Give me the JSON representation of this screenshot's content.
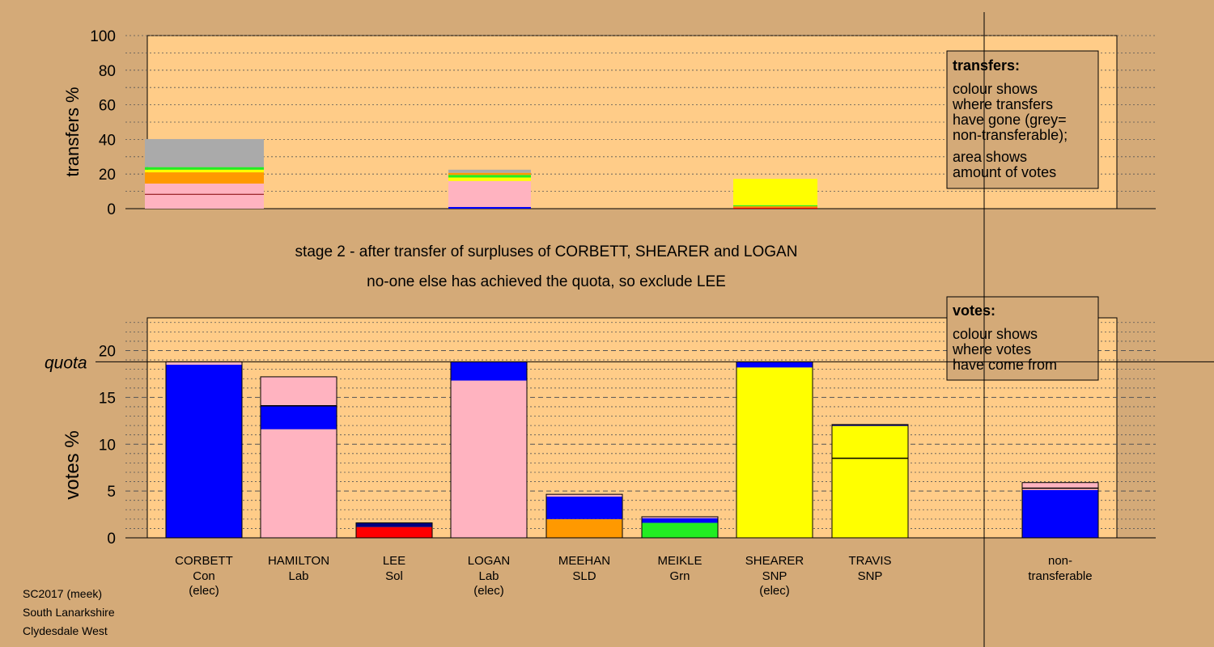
{
  "colors": {
    "background": "#d4aa78",
    "plot_bg": "#ffcc88",
    "Con": "#0000ff",
    "Lab": "#ffb3c0",
    "Sol": "#ff0000",
    "SLD": "#ff9900",
    "Grn": "#22ee22",
    "SNP": "#ffff00",
    "Con_dark": "#000080",
    "nontransferable": "#aaaaaa"
  },
  "top_legend": {
    "title": "transfers:",
    "lines1": [
      "colour shows",
      "where transfers",
      "have gone (grey=",
      "non-transferable);"
    ],
    "lines2": [
      "area shows",
      "amount of votes"
    ]
  },
  "bottom_legend": {
    "title": "votes:",
    "lines1": [
      "colour shows",
      "where votes",
      "have come from"
    ]
  },
  "stage_text": {
    "line1": "stage 2 - after transfer of surpluses of CORBETT, SHEARER and LOGAN",
    "line2": "no-one else has achieved the quota, so exclude LEE"
  },
  "footer": [
    "SC2017 (meek)",
    "South Lanarkshire",
    "Clydesdale West"
  ],
  "chart_data": [
    {
      "type": "bar",
      "title": "transfers",
      "ylabel": "transfers %",
      "ylim": [
        0,
        100
      ],
      "yticks": [
        0,
        20,
        40,
        60,
        80,
        100
      ],
      "bars": [
        {
          "source": "CORBETT",
          "segments": [
            {
              "party": "Lab",
              "value": 14.5
            },
            {
              "party": "SLD",
              "value": 6.5
            },
            {
              "party": "SNP",
              "value": 1.5
            },
            {
              "party": "Grn",
              "value": 1.5
            },
            {
              "party": "nontransferable",
              "value": 16.2
            }
          ],
          "marker": 8.3
        },
        {
          "source": "LOGAN",
          "segments": [
            {
              "party": "Con",
              "value": 1.0
            },
            {
              "party": "Lab",
              "value": 15.0
            },
            {
              "party": "SNP",
              "value": 2.0
            },
            {
              "party": "Grn",
              "value": 1.5
            },
            {
              "party": "SLD",
              "value": 1.2
            },
            {
              "party": "nontransferable",
              "value": 1.8
            }
          ],
          "marker": null
        },
        {
          "source": "SHEARER",
          "segments": [
            {
              "party": "Sol",
              "value": 0.6
            },
            {
              "party": "SLD",
              "value": 0.8
            },
            {
              "party": "Grn",
              "value": 0.6
            },
            {
              "party": "SNP",
              "value": 15.2
            }
          ],
          "marker": null
        }
      ]
    },
    {
      "type": "bar",
      "title": "votes",
      "ylabel": "votes %",
      "ylim": [
        0,
        23.5
      ],
      "yticks": [
        0,
        5,
        10,
        15,
        20
      ],
      "quota": 18.8,
      "quota_label": "quota",
      "candidates": [
        {
          "name": "CORBETT",
          "party": "Con",
          "status": "(elec)",
          "segments": [
            {
              "party": "Con",
              "value": 18.5
            },
            {
              "party": "Lab",
              "value": 0.3
            }
          ],
          "lines": []
        },
        {
          "name": "HAMILTON",
          "party": "Lab",
          "status": "",
          "segments": [
            {
              "party": "Lab",
              "value": 11.6
            },
            {
              "party": "Con",
              "value": 2.5
            },
            {
              "party": "Lab",
              "value": 3.1
            }
          ],
          "lines": [
            14.1
          ]
        },
        {
          "name": "LEE",
          "party": "Sol",
          "status": "",
          "segments": [
            {
              "party": "Sol",
              "value": 1.15
            },
            {
              "party": "Con_dark",
              "value": 0.45
            }
          ],
          "lines": []
        },
        {
          "name": "LOGAN",
          "party": "Lab",
          "status": "(elec)",
          "segments": [
            {
              "party": "Lab",
              "value": 16.8
            },
            {
              "party": "Con",
              "value": 2.0
            }
          ],
          "lines": []
        },
        {
          "name": "MEEHAN",
          "party": "SLD",
          "status": "",
          "segments": [
            {
              "party": "SLD",
              "value": 2.0
            },
            {
              "party": "Con",
              "value": 2.4
            },
            {
              "party": "Lab",
              "value": 0.25
            }
          ],
          "lines": []
        },
        {
          "name": "MEIKLE",
          "party": "Grn",
          "status": "",
          "segments": [
            {
              "party": "Grn",
              "value": 1.6
            },
            {
              "party": "Con",
              "value": 0.5
            },
            {
              "party": "Lab",
              "value": 0.15
            }
          ],
          "lines": []
        },
        {
          "name": "SHEARER",
          "party": "SNP",
          "status": "(elec)",
          "segments": [
            {
              "party": "SNP",
              "value": 18.2
            },
            {
              "party": "Con",
              "value": 0.6
            }
          ],
          "lines": []
        },
        {
          "name": "TRAVIS",
          "party": "SNP",
          "status": "",
          "segments": [
            {
              "party": "SNP",
              "value": 11.95
            },
            {
              "party": "Con_dark",
              "value": 0.15
            }
          ],
          "lines": [
            8.5
          ]
        }
      ],
      "nontransferable": {
        "label1": "non-",
        "label2": "transferable",
        "segments": [
          {
            "party": "Con",
            "value": 5.1
          },
          {
            "party": "Lab",
            "value": 0.2
          },
          {
            "party": "Lab",
            "value": 0.6
          }
        ],
        "lines": [
          5.3
        ]
      }
    }
  ]
}
